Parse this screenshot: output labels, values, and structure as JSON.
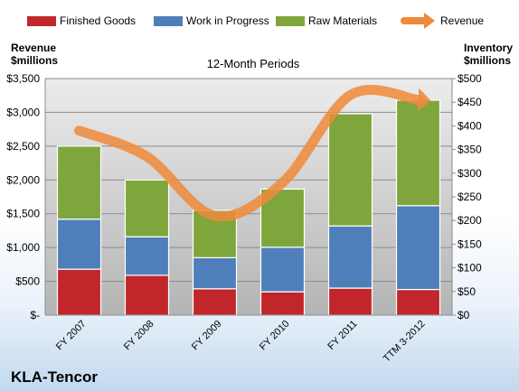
{
  "chart_data": {
    "type": "bar",
    "subtitle": "12-Month Periods",
    "company": "KLA-Tencor",
    "categories": [
      "FY 2007",
      "FY 2008",
      "FY 2009",
      "FY 2010",
      "FY 2011",
      "TTM 3-2012"
    ],
    "series": [
      {
        "name": "Finished Goods",
        "axis": "left",
        "stacked": true,
        "color": "#c0262a",
        "values": [
          680,
          590,
          390,
          345,
          400,
          380
        ]
      },
      {
        "name": "Work in Progress",
        "axis": "left",
        "stacked": true,
        "color": "#4f7fba",
        "values": [
          740,
          570,
          460,
          660,
          920,
          1240
        ]
      },
      {
        "name": "Raw Materials",
        "axis": "left",
        "stacked": true,
        "color": "#7fa63c",
        "values": [
          1080,
          840,
          700,
          860,
          1660,
          1560
        ]
      },
      {
        "name": "Revenue",
        "axis": "right",
        "type": "line",
        "color": "#ee8a3a",
        "values": [
          390,
          335,
          210,
          280,
          465,
          455
        ]
      }
    ],
    "ylabel_left": [
      "Revenue",
      "$millions"
    ],
    "ylabel_right": [
      "Inventory",
      "$millions"
    ],
    "ylim_left": [
      0,
      3500
    ],
    "ylim_right": [
      0,
      500
    ],
    "yticks_left": [
      "$-",
      "$500",
      "$1,000",
      "$1,500",
      "$2,000",
      "$2,500",
      "$3,000",
      "$3,500"
    ],
    "yticks_right": [
      "$0",
      "$50",
      "$100",
      "$150",
      "$200",
      "$250",
      "$300",
      "$350",
      "$400",
      "$450",
      "$500"
    ],
    "grid": true,
    "legend_position": "top"
  }
}
